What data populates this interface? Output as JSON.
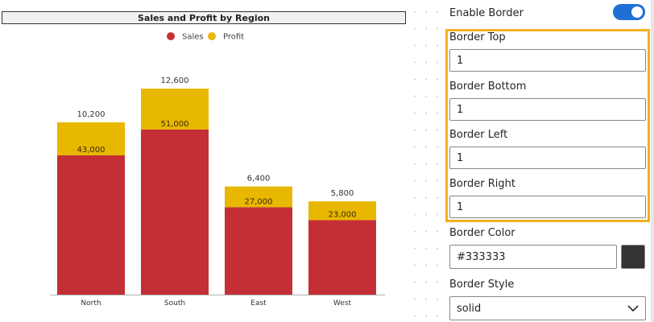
{
  "chart_data": {
    "type": "bar",
    "stacked": true,
    "title": "Sales and Profit by Region",
    "categories": [
      "North",
      "South",
      "East",
      "West"
    ],
    "series": [
      {
        "name": "Sales",
        "color": "#c42f35",
        "values": [
          43000,
          51000,
          27000,
          23000
        ],
        "labels": [
          "43,000",
          "51,000",
          "27,000",
          "23,000"
        ]
      },
      {
        "name": "Profit",
        "color": "#e8b800",
        "values": [
          10200,
          12600,
          6400,
          5800
        ],
        "labels": [
          "10,200",
          "12,600",
          "6,400",
          "5,800"
        ]
      }
    ],
    "xlabel": "",
    "ylabel": "",
    "ylim": [
      0,
      70000
    ],
    "legend_position": "top-center",
    "grid": false
  },
  "panel": {
    "enable_border": {
      "label": "Enable Border",
      "value": true
    },
    "fields": [
      {
        "label": "Border Top",
        "value": "1"
      },
      {
        "label": "Border Bottom",
        "value": "1"
      },
      {
        "label": "Border Left",
        "value": "1"
      },
      {
        "label": "Border Right",
        "value": "1"
      }
    ],
    "border_color": {
      "label": "Border Color",
      "value": "#333333"
    },
    "border_style": {
      "label": "Border Style",
      "value": "solid"
    },
    "highlight_color": "#f2b022",
    "toggle_color": "#1f6fd6"
  }
}
